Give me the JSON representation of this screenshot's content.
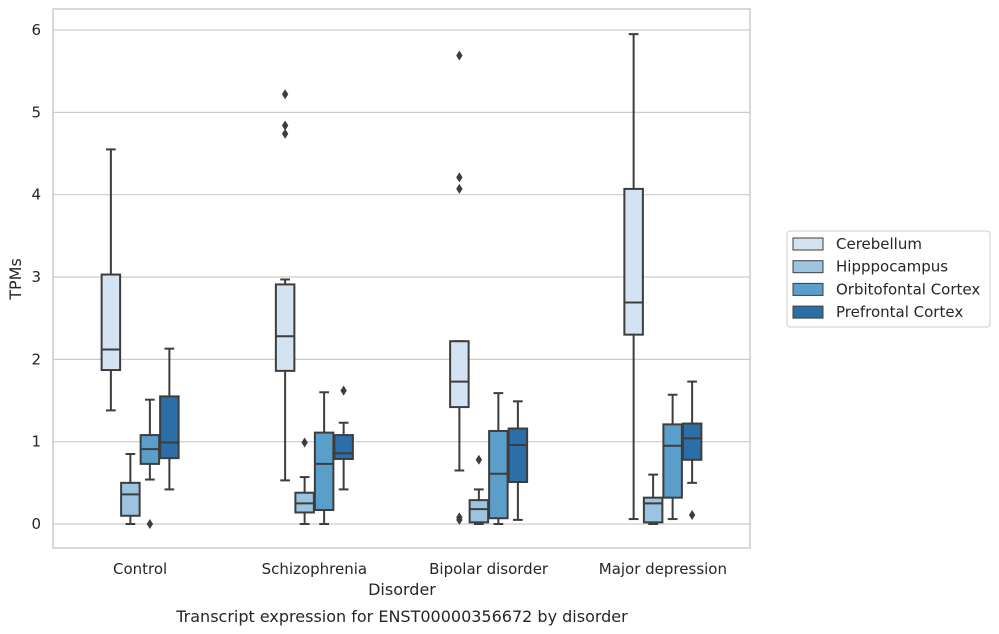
{
  "caption": "Transcript expression for ENST00000356672 by disorder",
  "chart_data": {
    "type": "box",
    "xlabel": "Disorder",
    "ylabel": "TPMs",
    "ylim": [
      -0.3,
      6.25
    ],
    "yticks": [
      0,
      1,
      2,
      3,
      4,
      5,
      6
    ],
    "grid": true,
    "legend_placement": "right",
    "categories": [
      "Control",
      "Schizophrenia",
      "Bipolar disorder",
      "Major depression"
    ],
    "series": [
      {
        "name": "Cerebellum",
        "color": "#d3e3f2",
        "boxes": [
          {
            "whislo": 1.38,
            "q1": 1.87,
            "med": 2.12,
            "q3": 3.03,
            "whishi": 4.55,
            "fliers": []
          },
          {
            "whislo": 0.53,
            "q1": 1.86,
            "med": 2.28,
            "q3": 2.91,
            "whishi": 2.97,
            "fliers": [
              4.74,
              4.84,
              5.22
            ]
          },
          {
            "whislo": 0.65,
            "q1": 1.42,
            "med": 1.73,
            "q3": 2.22,
            "whishi": 2.22,
            "fliers": [
              0.05,
              0.08,
              4.07,
              4.21,
              5.69
            ]
          },
          {
            "whislo": 0.06,
            "q1": 2.3,
            "med": 2.69,
            "q3": 4.07,
            "whishi": 5.95,
            "fliers": []
          }
        ]
      },
      {
        "name": "Hipppocampus",
        "color": "#9dc4de",
        "boxes": [
          {
            "whislo": 0.0,
            "q1": 0.1,
            "med": 0.36,
            "q3": 0.5,
            "whishi": 0.85,
            "fliers": []
          },
          {
            "whislo": 0.0,
            "q1": 0.14,
            "med": 0.25,
            "q3": 0.38,
            "whishi": 0.57,
            "fliers": [
              0.99
            ]
          },
          {
            "whislo": 0.0,
            "q1": 0.02,
            "med": 0.18,
            "q3": 0.29,
            "whishi": 0.42,
            "fliers": [
              0.78
            ]
          },
          {
            "whislo": 0.0,
            "q1": 0.02,
            "med": 0.25,
            "q3": 0.32,
            "whishi": 0.6,
            "fliers": []
          }
        ]
      },
      {
        "name": "Orbitofontal Cortex",
        "color": "#5b9ec9",
        "boxes": [
          {
            "whislo": 0.54,
            "q1": 0.73,
            "med": 0.91,
            "q3": 1.08,
            "whishi": 1.51,
            "fliers": [
              0.0
            ]
          },
          {
            "whislo": 0.0,
            "q1": 0.17,
            "med": 0.73,
            "q3": 1.11,
            "whishi": 1.6,
            "fliers": []
          },
          {
            "whislo": 0.0,
            "q1": 0.07,
            "med": 0.61,
            "q3": 1.13,
            "whishi": 1.59,
            "fliers": []
          },
          {
            "whislo": 0.06,
            "q1": 0.32,
            "med": 0.95,
            "q3": 1.21,
            "whishi": 1.57,
            "fliers": []
          }
        ]
      },
      {
        "name": "Prefrontal Cortex",
        "color": "#2c6ea8",
        "boxes": [
          {
            "whislo": 0.42,
            "q1": 0.8,
            "med": 0.99,
            "q3": 1.55,
            "whishi": 2.13,
            "fliers": []
          },
          {
            "whislo": 0.42,
            "q1": 0.79,
            "med": 0.86,
            "q3": 1.08,
            "whishi": 1.23,
            "fliers": [
              1.62
            ]
          },
          {
            "whislo": 0.05,
            "q1": 0.51,
            "med": 0.96,
            "q3": 1.16,
            "whishi": 1.49,
            "fliers": []
          },
          {
            "whislo": 0.5,
            "q1": 0.78,
            "med": 1.04,
            "q3": 1.22,
            "whishi": 1.73,
            "fliers": [
              0.11
            ]
          }
        ]
      }
    ]
  }
}
